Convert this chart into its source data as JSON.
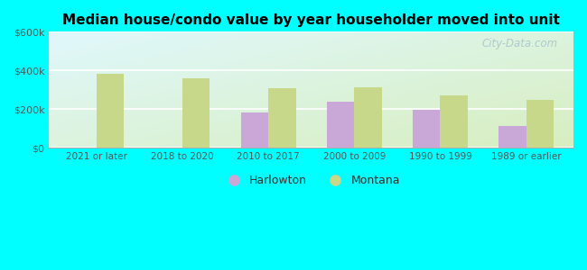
{
  "title": "Median house/condo value by year householder moved into unit",
  "categories": [
    "2021 or later",
    "2018 to 2020",
    "2010 to 2017",
    "2000 to 2009",
    "1990 to 1999",
    "1989 or earlier"
  ],
  "harlowton": [
    null,
    null,
    183000,
    238000,
    196000,
    113000
  ],
  "montana": [
    383000,
    358000,
    308000,
    313000,
    270000,
    248000
  ],
  "harlowton_color": "#c9a8d8",
  "montana_color": "#c8d88a",
  "background_outer": "#00ffff",
  "grad_top_left": "#d0f0f8",
  "grad_bottom_right": "#d8eec0",
  "ylim": [
    0,
    600000
  ],
  "yticks": [
    0,
    200000,
    400000,
    600000
  ],
  "ytick_labels": [
    "$0",
    "$200k",
    "$400k",
    "$600k"
  ],
  "bar_width": 0.32,
  "legend_labels": [
    "Harlowton",
    "Montana"
  ],
  "watermark": "City-Data.com",
  "tick_color": "#555555",
  "grid_color": "#ffffff",
  "title_fontsize": 11
}
